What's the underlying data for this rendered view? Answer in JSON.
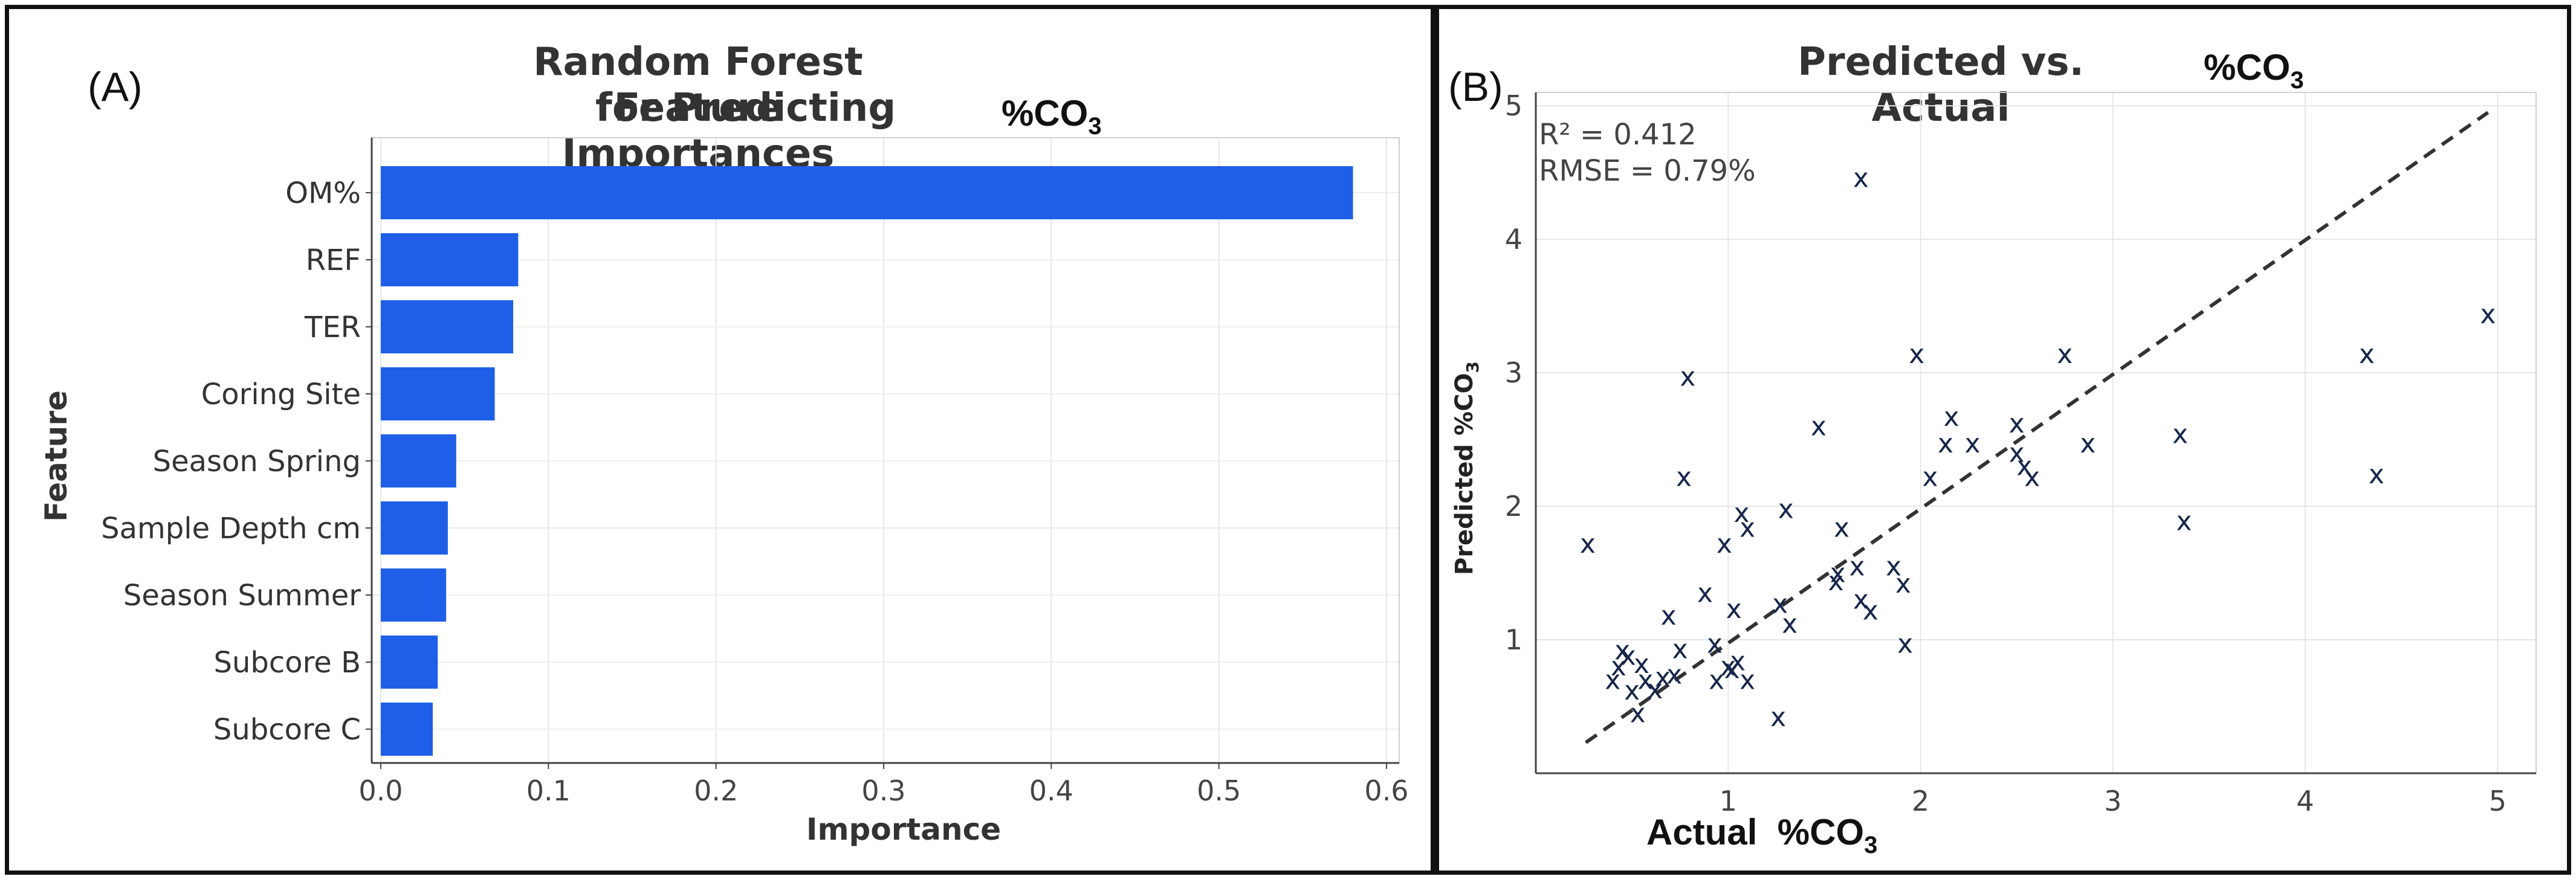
{
  "panels": {
    "a": {
      "letter": "(A)",
      "title_line1": "Random Forest Feature Importances",
      "title_line2": "for Predicting",
      "title_suffix": "%CO",
      "title_sub": "3"
    },
    "b": {
      "letter": "(B)",
      "title": "Predicted vs. Actual",
      "title_suffix": "%CO",
      "title_sub": "3",
      "r2": "R² = 0.412",
      "rmse": "RMSE = 0.79%",
      "xlabel": "Actual",
      "xlabel_suffix": "%CO",
      "xlabel_sub": "3"
    }
  },
  "chart_data": [
    {
      "type": "bar",
      "orientation": "horizontal",
      "title": "Random Forest Feature Importances for Predicting %CO3",
      "xlabel": "Importance",
      "ylabel": "Feature",
      "categories": [
        "OM%",
        "REF",
        "TER",
        "Coring Site",
        "Season Spring",
        "Sample Depth cm",
        "Season Summer",
        "Subcore B",
        "Subcore C"
      ],
      "values": [
        0.58,
        0.082,
        0.079,
        0.068,
        0.045,
        0.04,
        0.039,
        0.034,
        0.031
      ],
      "xticks": [
        "0.0",
        "0.1",
        "0.2",
        "0.3",
        "0.4",
        "0.5",
        "0.6"
      ],
      "xlim": [
        0,
        0.6
      ],
      "bar_color": "#1f5fe8",
      "grid": true
    },
    {
      "type": "scatter",
      "title": "Predicted vs. Actual %CO3",
      "xlabel": "Actual %CO3",
      "ylabel": "Predicted %CO",
      "ylabel_sub": "3",
      "marker": "x",
      "marker_color": "#16254a",
      "line_color": "#333333",
      "xlim": [
        0,
        5.2
      ],
      "ylim": [
        0,
        5.1
      ],
      "xticks": [
        "1",
        "2",
        "3",
        "4",
        "5"
      ],
      "yticks": [
        "1",
        "2",
        "3",
        "4",
        "5"
      ],
      "reference_line": {
        "x": [
          0.26,
          4.95
        ],
        "y": [
          0.23,
          4.95
        ]
      },
      "annotation_r2": 0.412,
      "annotation_rmse_percent": 0.79,
      "points": [
        [
          0.27,
          1.72
        ],
        [
          0.4,
          0.7
        ],
        [
          0.43,
          0.8
        ],
        [
          0.45,
          0.92
        ],
        [
          0.48,
          0.88
        ],
        [
          0.5,
          0.62
        ],
        [
          0.53,
          0.45
        ],
        [
          0.55,
          0.82
        ],
        [
          0.57,
          0.7
        ],
        [
          0.62,
          0.63
        ],
        [
          0.66,
          0.72
        ],
        [
          0.69,
          1.18
        ],
        [
          0.72,
          0.74
        ],
        [
          0.75,
          0.93
        ],
        [
          0.77,
          2.22
        ],
        [
          0.79,
          2.97
        ],
        [
          0.88,
          1.35
        ],
        [
          0.93,
          0.97
        ],
        [
          0.94,
          0.7
        ],
        [
          0.98,
          1.72
        ],
        [
          1.0,
          0.8
        ],
        [
          1.02,
          0.78
        ],
        [
          1.03,
          1.23
        ],
        [
          1.05,
          0.84
        ],
        [
          1.07,
          1.95
        ],
        [
          1.1,
          1.84
        ],
        [
          1.1,
          0.7
        ],
        [
          1.26,
          0.42
        ],
        [
          1.27,
          1.27
        ],
        [
          1.3,
          1.98
        ],
        [
          1.32,
          1.12
        ],
        [
          1.47,
          2.6
        ],
        [
          1.56,
          1.44
        ],
        [
          1.57,
          1.5
        ],
        [
          1.59,
          1.84
        ],
        [
          1.67,
          1.55
        ],
        [
          1.69,
          1.3
        ],
        [
          1.69,
          4.46
        ],
        [
          1.74,
          1.22
        ],
        [
          1.86,
          1.55
        ],
        [
          1.91,
          1.42
        ],
        [
          1.92,
          0.97
        ],
        [
          1.98,
          3.14
        ],
        [
          2.05,
          2.22
        ],
        [
          2.13,
          2.47
        ],
        [
          2.16,
          2.67
        ],
        [
          2.27,
          2.47
        ],
        [
          2.5,
          2.62
        ],
        [
          2.5,
          2.4
        ],
        [
          2.54,
          2.3
        ],
        [
          2.58,
          2.22
        ],
        [
          2.75,
          3.14
        ],
        [
          2.87,
          2.47
        ],
        [
          3.35,
          2.54
        ],
        [
          3.37,
          1.89
        ],
        [
          4.32,
          3.14
        ],
        [
          4.37,
          2.24
        ],
        [
          4.95,
          3.44
        ]
      ]
    }
  ]
}
